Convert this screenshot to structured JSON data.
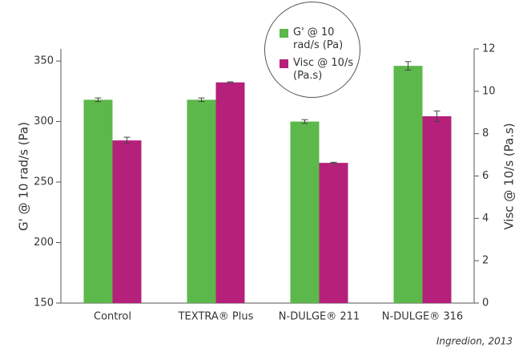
{
  "chart_data": {
    "type": "bar",
    "categories": [
      "Control",
      "TEXTRA® Plus",
      "N-DULGE® 211",
      "N-DULGE® 316"
    ],
    "series": [
      {
        "name": "G' @ 10 rad/s (Pa)",
        "color": "#5cb84a",
        "values": [
          318,
          318,
          300,
          346
        ],
        "errors": [
          1.5,
          1.5,
          1.5,
          3.5
        ]
      },
      {
        "name": "Visc @ 10/s (Pa.s)",
        "color": "#b5207a",
        "axis": "y2",
        "values": [
          7.68,
          10.42,
          6.62,
          8.82
        ],
        "errors": [
          0.15,
          0.03,
          0.03,
          0.25
        ]
      }
    ],
    "ylabel": "G' @ 10 rad/s (Pa)",
    "y2label": "Visc @ 10/s (Pa.s)",
    "ylim": [
      150,
      360
    ],
    "yticks": [
      150,
      200,
      250,
      300,
      350
    ],
    "y2lim": [
      0,
      12
    ],
    "y2ticks": [
      0,
      2,
      4,
      6,
      8,
      10,
      12
    ],
    "grid": false,
    "legend": "top",
    "source": "Ingredion, 2013"
  }
}
